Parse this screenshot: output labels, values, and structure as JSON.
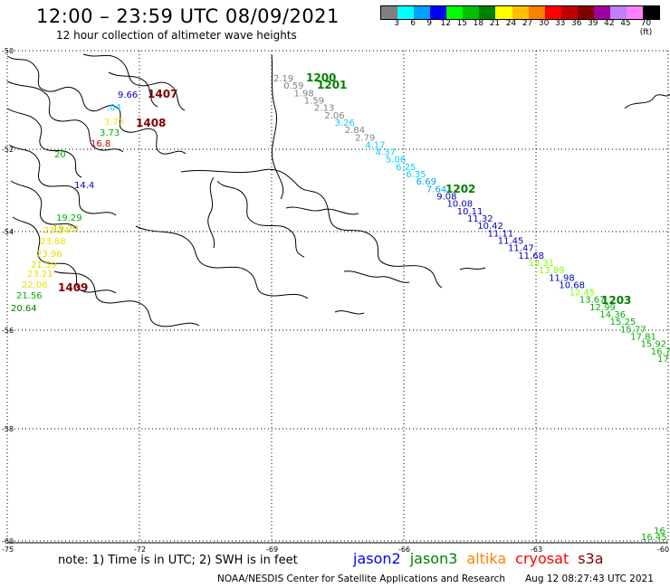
{
  "title": "12:00 – 23:59 UTC 08/09/2021",
  "subtitle": "12 hour collection of altimeter wave heights",
  "colorbar": {
    "colors": [
      "#808080",
      "#00ffff",
      "#00a0ff",
      "#0000ff",
      "#00ff00",
      "#00c000",
      "#008000",
      "#ffff00",
      "#ffc000",
      "#ff8000",
      "#ff0000",
      "#c00000",
      "#800000",
      "#a000a0",
      "#c080ff",
      "#ff80ff",
      "#000000"
    ],
    "labels": [
      "3",
      "6",
      "9",
      "12",
      "15",
      "18",
      "21",
      "24",
      "27",
      "30",
      "33",
      "36",
      "39",
      "42",
      "45",
      "70 (ft)"
    ]
  },
  "axes": {
    "lat_labels": [
      "-50",
      "-52",
      "-54",
      "-56",
      "-58",
      "-60"
    ],
    "lon_labels": [
      "-75",
      "-72",
      "-69",
      "-66",
      "-63",
      "-60"
    ]
  },
  "time_labels": [
    {
      "text": "1407",
      "color": "#800000"
    },
    {
      "text": "1408",
      "color": "#800000"
    },
    {
      "text": "1409",
      "color": "#800000"
    },
    {
      "text": "1200",
      "color": "#008000"
    },
    {
      "text": "1201",
      "color": "#008000"
    },
    {
      "text": "1202",
      "color": "#008000"
    },
    {
      "text": "1203",
      "color": "#008000"
    }
  ],
  "obs_west": [
    {
      "v": "9.66",
      "c": "#0000c0"
    },
    {
      "v": ".04",
      "c": "#00d0ff"
    },
    {
      "v": "3.73",
      "c": "#ffe000"
    },
    {
      "v": "3.73",
      "c": "#00b000"
    },
    {
      "v": "16.8",
      "c": "#c00000"
    },
    {
      "v": "20",
      "c": "#00b000"
    },
    {
      "v": "14.4",
      "c": "#0000c0"
    },
    {
      "v": "19.29",
      "c": "#00b000"
    },
    {
      "v": "19.29",
      "c": "#c0c000"
    },
    {
      "v": "23.24",
      "c": "#e8e000"
    },
    {
      "v": "23.68",
      "c": "#e8e000"
    },
    {
      "v": "23.96",
      "c": "#e8e000"
    },
    {
      "v": "21.59",
      "c": "#e8e000"
    },
    {
      "v": "23.21",
      "c": "#e8e000"
    },
    {
      "v": "22.06",
      "c": "#e8e000"
    },
    {
      "v": "21.56",
      "c": "#00b000"
    },
    {
      "v": "20.64",
      "c": "#008000"
    }
  ],
  "obs_track": [
    {
      "v": "2.19",
      "c": "#808080"
    },
    {
      "v": "0.59",
      "c": "#808080"
    },
    {
      "v": "1.98",
      "c": "#808080"
    },
    {
      "v": "1.59",
      "c": "#808080"
    },
    {
      "v": "2.13",
      "c": "#808080"
    },
    {
      "v": "2.06",
      "c": "#808080"
    },
    {
      "v": "3.26",
      "c": "#00d0ff"
    },
    {
      "v": "2.84",
      "c": "#808080"
    },
    {
      "v": "2.79",
      "c": "#808080"
    },
    {
      "v": "4.17",
      "c": "#00d0ff"
    },
    {
      "v": "4.37",
      "c": "#00d0ff"
    },
    {
      "v": "5.06",
      "c": "#00d0ff"
    },
    {
      "v": "6.25",
      "c": "#00d0ff"
    },
    {
      "v": "6.35",
      "c": "#00d0ff"
    },
    {
      "v": "6.69",
      "c": "#00a0ff"
    },
    {
      "v": "7.64",
      "c": "#00a0ff"
    },
    {
      "v": "9.08",
      "c": "#0000c0"
    },
    {
      "v": "10.08",
      "c": "#0000c0"
    },
    {
      "v": "10.11",
      "c": "#0000c0"
    },
    {
      "v": "11.32",
      "c": "#0000c0"
    },
    {
      "v": "10.42",
      "c": "#0000c0"
    },
    {
      "v": "11.11",
      "c": "#0000c0"
    },
    {
      "v": "11.45",
      "c": "#0000c0"
    },
    {
      "v": "11.47",
      "c": "#0000c0"
    },
    {
      "v": "11.68",
      "c": "#0000c0"
    },
    {
      "v": "13.31",
      "c": "#80ff00"
    },
    {
      "v": "13.89",
      "c": "#80ff00"
    },
    {
      "v": "11.98",
      "c": "#0000c0"
    },
    {
      "v": "10.68",
      "c": "#0000c0"
    },
    {
      "v": "12.45",
      "c": "#80ff00"
    },
    {
      "v": "13.67",
      "c": "#00b000"
    },
    {
      "v": "12.99",
      "c": "#00b000"
    },
    {
      "v": "14.36",
      "c": "#00b000"
    },
    {
      "v": "15.25",
      "c": "#00b000"
    },
    {
      "v": "15.77",
      "c": "#00b000"
    },
    {
      "v": "17.81",
      "c": "#00b000"
    },
    {
      "v": "15.92",
      "c": "#00b000"
    },
    {
      "v": "16.71",
      "c": "#00b000"
    },
    {
      "v": "17",
      "c": "#00b000"
    }
  ],
  "obs_corner": [
    {
      "v": "16",
      "c": "#00b000"
    },
    {
      "v": "16.45",
      "c": "#00b000"
    }
  ],
  "note": "note: 1) Time is in UTC; 2) SWH is in feet",
  "satellites": [
    {
      "name": "jason2",
      "color": "#0000ff"
    },
    {
      "name": "jason3",
      "color": "#008000"
    },
    {
      "name": "altika",
      "color": "#ff8000"
    },
    {
      "name": "cryosat",
      "color": "#ff0000"
    },
    {
      "name": "s3a",
      "color": "#800000"
    }
  ],
  "footer": "NOAA/NESDIS Center for Satellite Applications and Research",
  "footer_time": "Aug 12 08:27:43 UTC 2021"
}
